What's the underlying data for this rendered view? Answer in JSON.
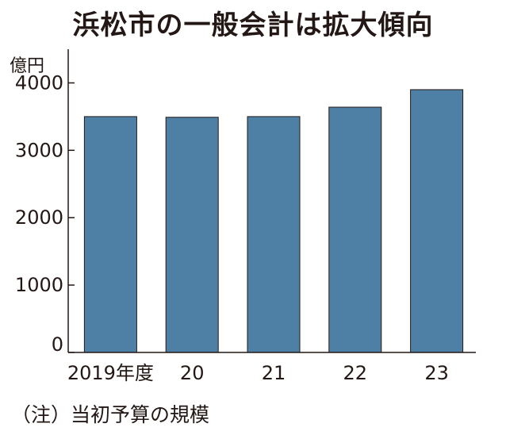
{
  "chart_data": {
    "type": "bar",
    "title": "浜松市の一般会計は拡大傾向",
    "unit": "億円",
    "categories": [
      "2019年度",
      "20",
      "21",
      "22",
      "23"
    ],
    "values": [
      3500,
      3490,
      3500,
      3640,
      3900
    ],
    "ylim": [
      0,
      4500
    ],
    "yticks": [
      0,
      1000,
      2000,
      3000,
      4000
    ],
    "ytick_labels": [
      "0",
      "1000",
      "2000",
      "3000",
      "4000"
    ],
    "grid": false,
    "bar_color": "#4e7fa5",
    "note": "（注）当初予算の規模"
  }
}
